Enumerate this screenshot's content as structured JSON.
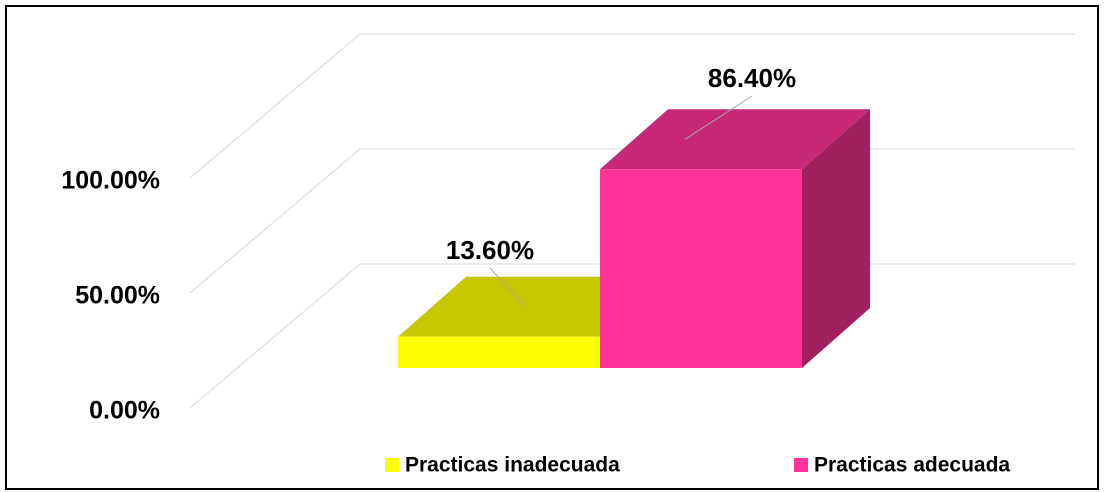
{
  "chart_data": {
    "type": "bar3d",
    "series": [
      {
        "name": "Practicas inadecuada",
        "color": "#ffff00",
        "values": [
          13.6
        ],
        "value_labels": [
          "13.60%"
        ]
      },
      {
        "name": "Practicas adecuada",
        "color": "#ff3399",
        "values": [
          86.4
        ],
        "value_labels": [
          "86.40%"
        ]
      }
    ],
    "ylim": [
      0,
      100
    ],
    "yticks": [
      {
        "value": 0,
        "label": "0.00%"
      },
      {
        "value": 50,
        "label": "50.00%"
      },
      {
        "value": 100,
        "label": "100.00%"
      }
    ],
    "grid": true,
    "legend": "bottom"
  }
}
